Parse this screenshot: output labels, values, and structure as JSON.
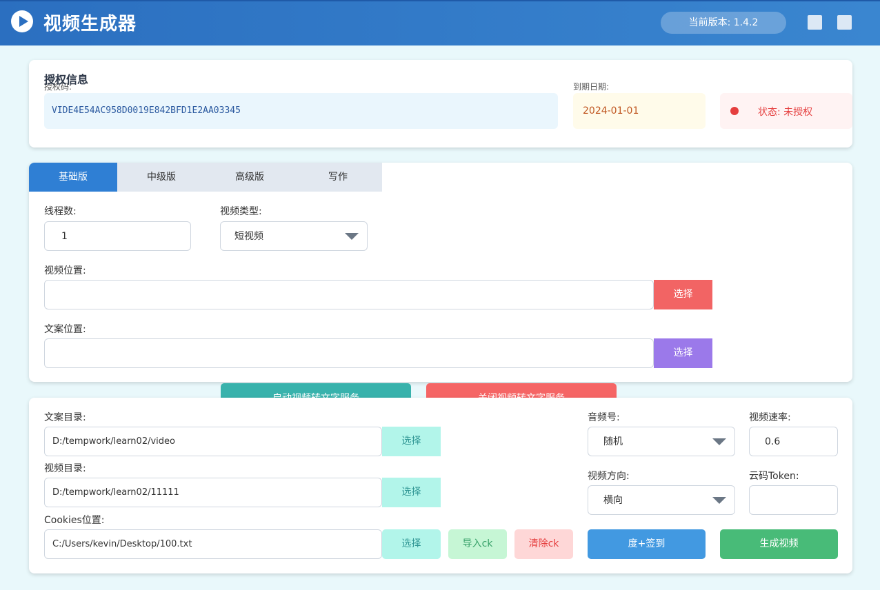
{
  "header": {
    "title": "视频生成器",
    "version": "当前版本: 1.4.2"
  },
  "auth": {
    "title": "授权信息",
    "code_label": "授权码:",
    "code_value": "VIDE4E54AC958D0019E842BFD1E2AA03345",
    "expiry_label": "到期日期:",
    "expiry_value": "2024-01-01",
    "status": "状态: 未授权",
    "status_color": "#e53e3e"
  },
  "tabs": [
    {
      "label": "基础版",
      "active": true
    },
    {
      "label": "中级版",
      "active": false
    },
    {
      "label": "高级版",
      "active": false
    },
    {
      "label": "写作",
      "active": false
    }
  ],
  "basic": {
    "threads_label": "线程数:",
    "threads_value": "1",
    "video_type_label": "视频类型:",
    "video_type_value": "短视频",
    "video_location_label": "视频位置:",
    "video_location_value": "",
    "video_select": "选择",
    "copy_location_label": "文案位置:",
    "copy_location_value": "",
    "copy_select": "选择"
  },
  "service": {
    "start": "启动视频转文字服务",
    "stop": "关闭视频转文字服务"
  },
  "bottom": {
    "copy_dir_label": "文案目录:",
    "copy_dir_value": "D:/tempwork/learn02/video",
    "copy_dir_select": "选择",
    "video_dir_label": "视频目录:",
    "video_dir_value": "D:/tempwork/learn02/11111",
    "video_dir_select": "选择",
    "cookies_label": "Cookies位置:",
    "cookies_value": "C:/Users/kevin/Desktop/100.txt",
    "cookies_select": "选择",
    "import_ck": "导入ck",
    "clear_ck": "清除ck",
    "audio_label": "音频号:",
    "audio_value": "随机",
    "rate_label": "视频速率:",
    "rate_value": "0.6",
    "direction_label": "视频方向:",
    "direction_value": "横向",
    "token_label": "云码Token:",
    "token_value": "",
    "sign_btn": "度+签到",
    "generate_btn": "生成视频"
  }
}
